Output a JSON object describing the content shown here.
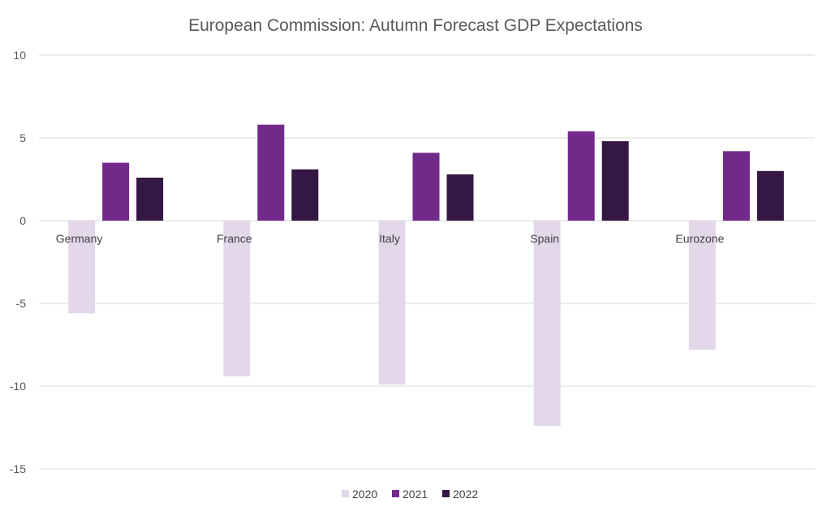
{
  "chart_data": {
    "type": "bar",
    "title": "European Commission: Autumn Forecast GDP Expectations",
    "xlabel": "",
    "ylabel": "",
    "ylim": [
      -15,
      10
    ],
    "yticks": [
      10,
      5,
      0,
      -5,
      -10,
      -15
    ],
    "categories": [
      "Germany",
      "France",
      "Italy",
      "Spain",
      "Eurozone"
    ],
    "series": [
      {
        "name": "2020",
        "color": "#e3d8ea",
        "values": [
          -5.6,
          -9.4,
          -9.9,
          -12.4,
          -7.8
        ]
      },
      {
        "name": "2021",
        "color": "#722a8a",
        "values": [
          3.5,
          5.8,
          4.1,
          5.4,
          4.2
        ]
      },
      {
        "name": "2022",
        "color": "#341843",
        "values": [
          2.6,
          3.1,
          2.8,
          4.8,
          3.0
        ]
      }
    ],
    "grid": true,
    "legend": "bottom-center"
  }
}
